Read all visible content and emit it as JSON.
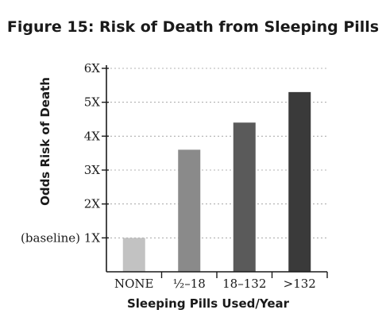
{
  "chart_data": {
    "type": "bar",
    "title": "Figure 15: Risk of Death from Sleeping Pills",
    "xlabel": "Sleeping Pills Used/Year",
    "ylabel": "Odds Risk of Death",
    "categories": [
      "NONE",
      "½–18",
      "18–132",
      ">132"
    ],
    "values": [
      1.0,
      3.6,
      4.4,
      5.3
    ],
    "ylim": [
      0,
      6
    ],
    "yticks": [
      {
        "value": 1,
        "label": "(baseline) 1X"
      },
      {
        "value": 2,
        "label": "2X"
      },
      {
        "value": 3,
        "label": "3X"
      },
      {
        "value": 4,
        "label": "4X"
      },
      {
        "value": 5,
        "label": "5X"
      },
      {
        "value": 6,
        "label": "6X"
      }
    ],
    "grid": true,
    "bar_colors": [
      "#c2c2c2",
      "#8a8a8a",
      "#5a5a5a",
      "#3a3a3a"
    ]
  }
}
